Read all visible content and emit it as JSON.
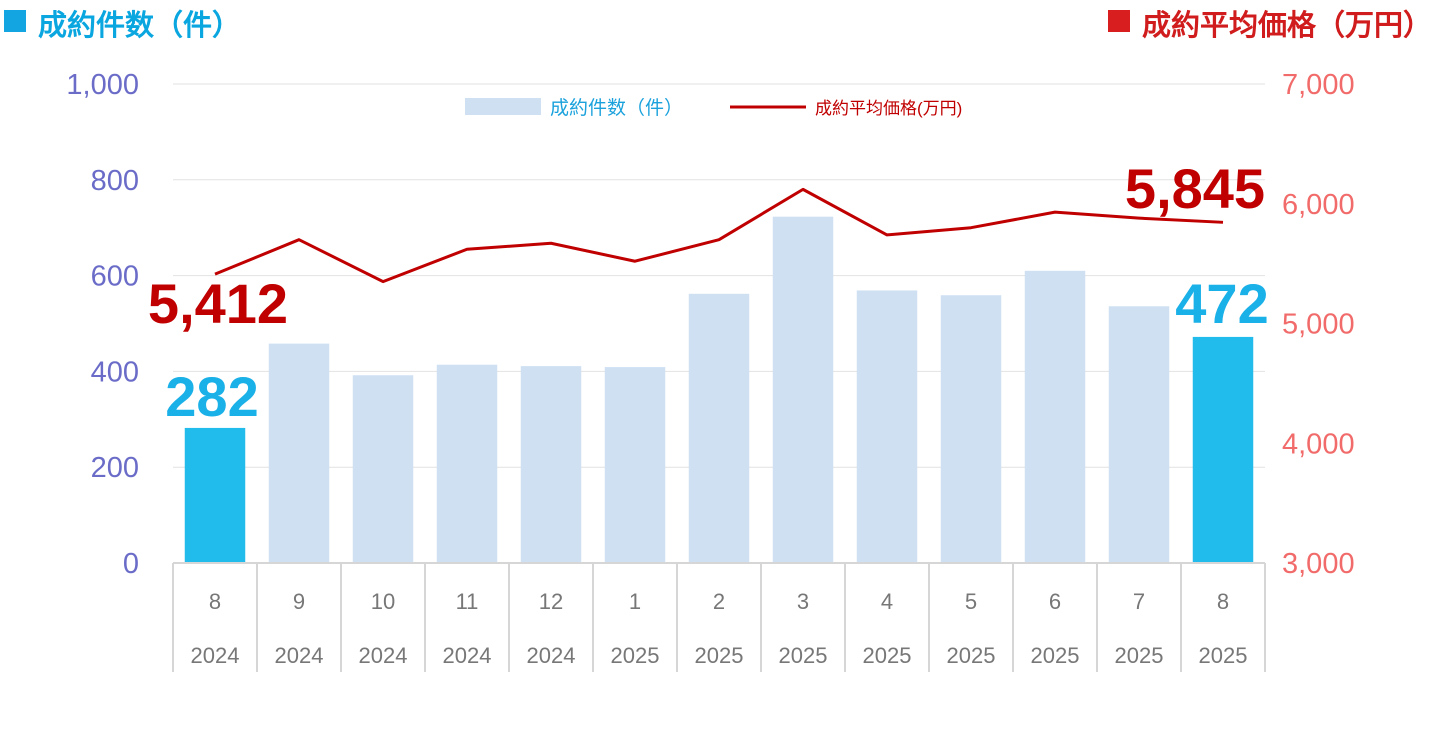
{
  "header": {
    "left_title": "成約件数（件）",
    "right_title": "成約平均価格（万円）",
    "left_color": "#12a5e2",
    "right_color": "#d81e1e"
  },
  "chart_data": {
    "type": "bar",
    "categories": [
      [
        "8",
        "2024"
      ],
      [
        "9",
        "2024"
      ],
      [
        "10",
        "2024"
      ],
      [
        "11",
        "2024"
      ],
      [
        "12",
        "2024"
      ],
      [
        "1",
        "2025"
      ],
      [
        "2",
        "2025"
      ],
      [
        "3",
        "2025"
      ],
      [
        "4",
        "2025"
      ],
      [
        "5",
        "2025"
      ],
      [
        "6",
        "2025"
      ],
      [
        "7",
        "2025"
      ],
      [
        "8",
        "2025"
      ]
    ],
    "series": [
      {
        "name": "成約件数（件）",
        "type": "bar",
        "axis": "left",
        "values": [
          282,
          458,
          392,
          414,
          411,
          409,
          562,
          723,
          569,
          559,
          610,
          536,
          472
        ],
        "color": "#cfe0f3",
        "highlight_color": "#22bcec",
        "highlight_indices": [
          0,
          12
        ]
      },
      {
        "name": "成約平均価格(万円)",
        "type": "line",
        "axis": "right",
        "values": [
          5412,
          5700,
          5350,
          5620,
          5670,
          5520,
          5700,
          6120,
          5740,
          5800,
          5930,
          5880,
          5845
        ],
        "color": "#c00000"
      }
    ],
    "left_axis": {
      "ylim": [
        0,
        1000
      ],
      "ticks": [
        "0",
        "200",
        "400",
        "600",
        "800",
        "1,000"
      ],
      "color": "#6a6cc8"
    },
    "right_axis": {
      "ylim": [
        3000,
        7000
      ],
      "ticks": [
        "3,000",
        "4,000",
        "5,000",
        "6,000",
        "7,000"
      ],
      "color": "#f26b6b"
    },
    "grid": true,
    "legend": "top-center",
    "annotations": [
      {
        "text": "282",
        "series": "bar",
        "index": 0,
        "color": "#1ab0e8"
      },
      {
        "text": "472",
        "series": "bar",
        "index": 12,
        "color": "#1ab0e8"
      },
      {
        "text": "5,412",
        "series": "line",
        "index": 0,
        "color": "#c00000"
      },
      {
        "text": "5,845",
        "series": "line",
        "index": 12,
        "color": "#c00000"
      }
    ]
  }
}
